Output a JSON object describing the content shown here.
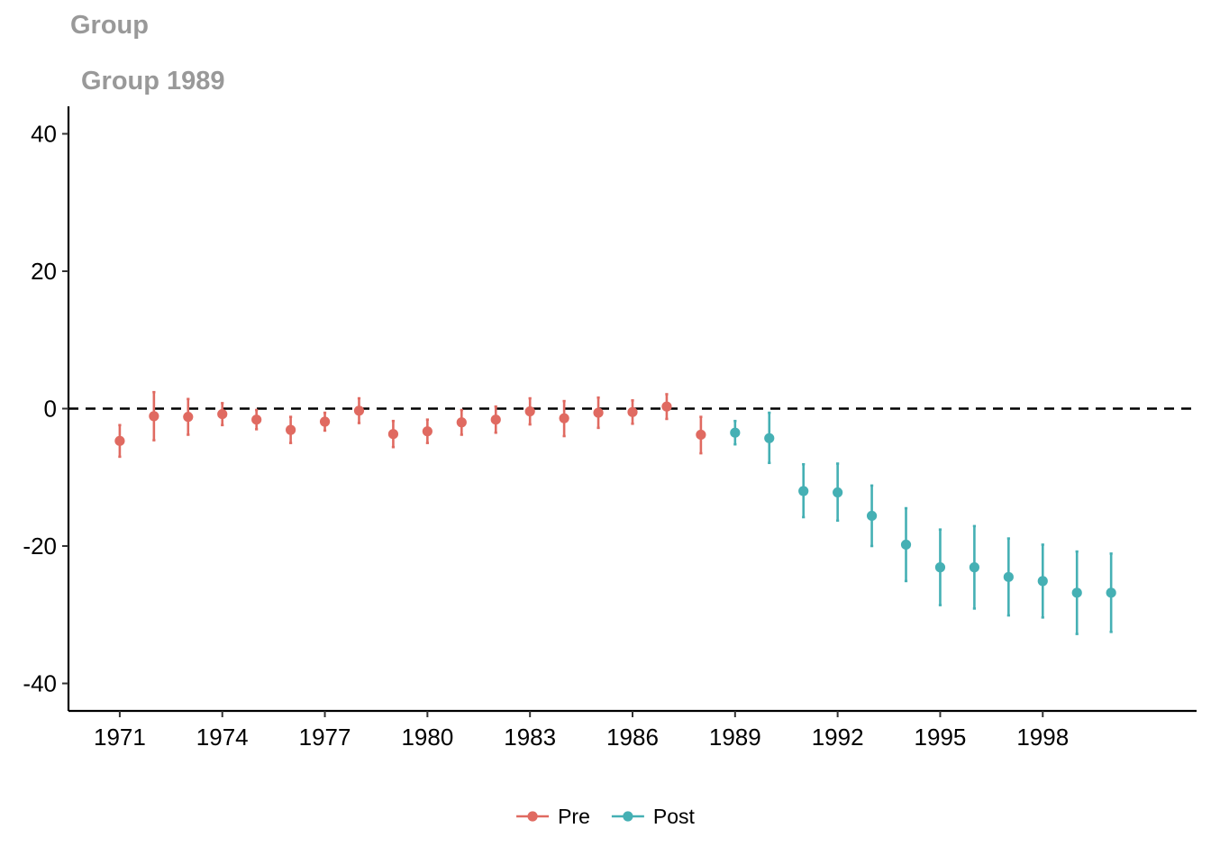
{
  "chart_data": {
    "type": "scatter",
    "title": "Group",
    "subtitle": "Group 1989",
    "xlabel": "",
    "ylabel": "",
    "xlim": [
      1969.5,
      2002.5
    ],
    "ylim": [
      -44,
      44
    ],
    "x_ticks": [
      1971,
      1974,
      1977,
      1980,
      1983,
      1986,
      1989,
      1992,
      1995,
      1998
    ],
    "x_tick_labels": [
      "1971",
      "1974",
      "1977",
      "1980",
      "1983",
      "1986",
      "1989",
      "1992",
      "1995",
      "1998"
    ],
    "y_ticks": [
      -40,
      -20,
      0,
      20,
      40
    ],
    "y_tick_labels": [
      "-40",
      "-20",
      "0",
      "20",
      "40"
    ],
    "reference_line": 0,
    "grid": false,
    "legend_position": "bottom",
    "series": [
      {
        "name": "Pre",
        "color": "#E06A61",
        "points": [
          {
            "x": 1971,
            "y": -4.7,
            "lo": -7.0,
            "hi": -2.4
          },
          {
            "x": 1972,
            "y": -1.1,
            "lo": -4.6,
            "hi": 2.4
          },
          {
            "x": 1973,
            "y": -1.2,
            "lo": -3.8,
            "hi": 1.4
          },
          {
            "x": 1974,
            "y": -0.8,
            "lo": -2.4,
            "hi": 0.8
          },
          {
            "x": 1975,
            "y": -1.6,
            "lo": -3.0,
            "hi": -0.2
          },
          {
            "x": 1976,
            "y": -3.1,
            "lo": -5.0,
            "hi": -1.2
          },
          {
            "x": 1977,
            "y": -1.9,
            "lo": -3.2,
            "hi": -0.6
          },
          {
            "x": 1978,
            "y": -0.3,
            "lo": -2.1,
            "hi": 1.5
          },
          {
            "x": 1979,
            "y": -3.7,
            "lo": -5.6,
            "hi": -1.8
          },
          {
            "x": 1980,
            "y": -3.3,
            "lo": -5.0,
            "hi": -1.6
          },
          {
            "x": 1981,
            "y": -2.0,
            "lo": -3.8,
            "hi": -0.2
          },
          {
            "x": 1982,
            "y": -1.6,
            "lo": -3.5,
            "hi": 0.3
          },
          {
            "x": 1983,
            "y": -0.4,
            "lo": -2.3,
            "hi": 1.5
          },
          {
            "x": 1984,
            "y": -1.4,
            "lo": -4.0,
            "hi": 1.1
          },
          {
            "x": 1985,
            "y": -0.6,
            "lo": -2.8,
            "hi": 1.6
          },
          {
            "x": 1986,
            "y": -0.5,
            "lo": -2.2,
            "hi": 1.2
          },
          {
            "x": 1987,
            "y": 0.3,
            "lo": -1.5,
            "hi": 2.1
          },
          {
            "x": 1988,
            "y": -3.8,
            "lo": -6.5,
            "hi": -1.2
          }
        ]
      },
      {
        "name": "Post",
        "color": "#45B0B4",
        "points": [
          {
            "x": 1989,
            "y": -3.5,
            "lo": -5.2,
            "hi": -1.8
          },
          {
            "x": 1990,
            "y": -4.3,
            "lo": -7.9,
            "hi": -0.6
          },
          {
            "x": 1991,
            "y": -12.0,
            "lo": -15.8,
            "hi": -8.1
          },
          {
            "x": 1992,
            "y": -12.2,
            "lo": -16.3,
            "hi": -8.0
          },
          {
            "x": 1993,
            "y": -15.6,
            "lo": -20.0,
            "hi": -11.2
          },
          {
            "x": 1994,
            "y": -19.8,
            "lo": -25.1,
            "hi": -14.5
          },
          {
            "x": 1995,
            "y": -23.1,
            "lo": -28.6,
            "hi": -17.6
          },
          {
            "x": 1996,
            "y": -23.1,
            "lo": -29.1,
            "hi": -17.1
          },
          {
            "x": 1997,
            "y": -24.5,
            "lo": -30.1,
            "hi": -18.9
          },
          {
            "x": 1998,
            "y": -25.1,
            "lo": -30.4,
            "hi": -19.8
          },
          {
            "x": 1999,
            "y": -26.8,
            "lo": -32.8,
            "hi": -20.8
          },
          {
            "x": 2000,
            "y": -26.8,
            "lo": -32.5,
            "hi": -21.1
          }
        ]
      }
    ]
  }
}
